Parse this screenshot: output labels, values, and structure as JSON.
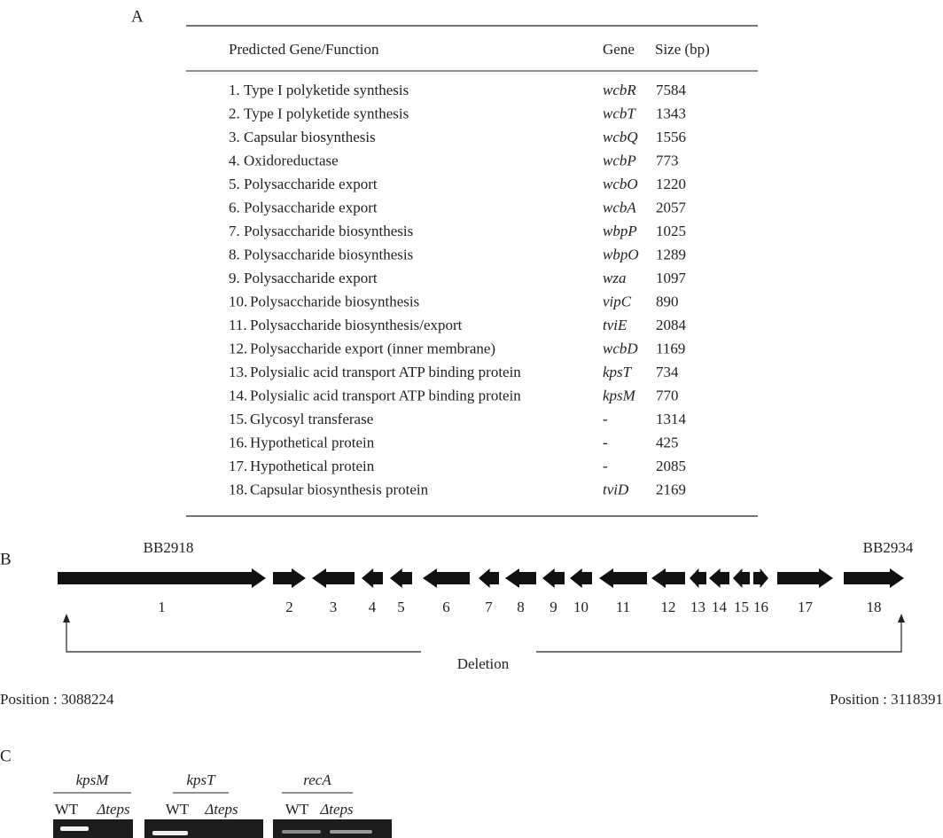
{
  "panel_a": {
    "label": "A",
    "table": {
      "headers": [
        "Predicted Gene/Function",
        "Gene",
        "Size (bp)"
      ],
      "rows": [
        [
          "1.",
          "Type I polyketide synthesis",
          "wcbR",
          7584
        ],
        [
          "2.",
          "Type I polyketide synthesis",
          "wcbT",
          1343
        ],
        [
          "3.",
          "Capsular biosynthesis",
          "wcbQ",
          1556
        ],
        [
          "4.",
          "Oxidoreductase",
          "wcbP",
          773
        ],
        [
          "5.",
          "Polysaccharide export",
          "wcbO",
          1220
        ],
        [
          "6.",
          "Polysaccharide export",
          "wcbA",
          2057
        ],
        [
          "7.",
          "Polysaccharide biosynthesis",
          "wbpP",
          1025
        ],
        [
          "8.",
          "Polysaccharide biosynthesis",
          "wbpO",
          1289
        ],
        [
          "9.",
          "Polysaccharide export",
          "wza",
          1097
        ],
        [
          "10.",
          "Polysaccharide biosynthesis",
          "vipC",
          890
        ],
        [
          "11.",
          "Polysaccharide biosynthesis/export",
          "tviE",
          2084
        ],
        [
          "12.",
          "Polysaccharide export (inner membrane)",
          "wcbD",
          1169
        ],
        [
          "13.",
          "Polysialic acid transport ATP binding protein",
          "kpsT",
          734
        ],
        [
          "14.",
          "Polysialic acid transport ATP binding protein",
          "kpsM",
          770
        ],
        [
          "15.",
          "Glycosyl transferase",
          "-",
          1314
        ],
        [
          "16.",
          "Hypothetical protein",
          "-",
          425
        ],
        [
          "17.",
          "Hypothetical protein",
          "-",
          2085
        ],
        [
          "18.",
          "Capsular biosynthesis protein",
          "tviD",
          2169
        ]
      ]
    }
  },
  "panel_b": {
    "label": "B",
    "left_locus": "BB2918",
    "right_locus": "BB2934",
    "genes": [
      {
        "number": "1",
        "direction": "right"
      },
      {
        "number": "2",
        "direction": "right"
      },
      {
        "number": "3",
        "direction": "left"
      },
      {
        "number": "4",
        "direction": "left"
      },
      {
        "number": "5",
        "direction": "left"
      },
      {
        "number": "6",
        "direction": "left"
      },
      {
        "number": "7",
        "direction": "left"
      },
      {
        "number": "8",
        "direction": "left"
      },
      {
        "number": "9",
        "direction": "left"
      },
      {
        "number": "10",
        "direction": "left"
      },
      {
        "number": "11",
        "direction": "left"
      },
      {
        "number": "12",
        "direction": "left"
      },
      {
        "number": "13",
        "direction": "left"
      },
      {
        "number": "14",
        "direction": "left"
      },
      {
        "number": "15",
        "direction": "left"
      },
      {
        "number": "16",
        "direction": "right"
      },
      {
        "number": "17",
        "direction": "right"
      },
      {
        "number": "18",
        "direction": "right"
      }
    ],
    "deletion": "Deletion",
    "left_position": "Position : 3088224",
    "right_position": "Position : 3118391"
  },
  "panel_c": {
    "label": "C",
    "gels": [
      {
        "gene": "kpsM",
        "lanes": [
          "WT",
          "Δteps"
        ]
      },
      {
        "gene": "kpsT",
        "lanes": [
          "WT",
          "Δteps"
        ]
      },
      {
        "gene": "recA",
        "lanes": [
          "WT",
          "Δteps"
        ]
      }
    ]
  }
}
